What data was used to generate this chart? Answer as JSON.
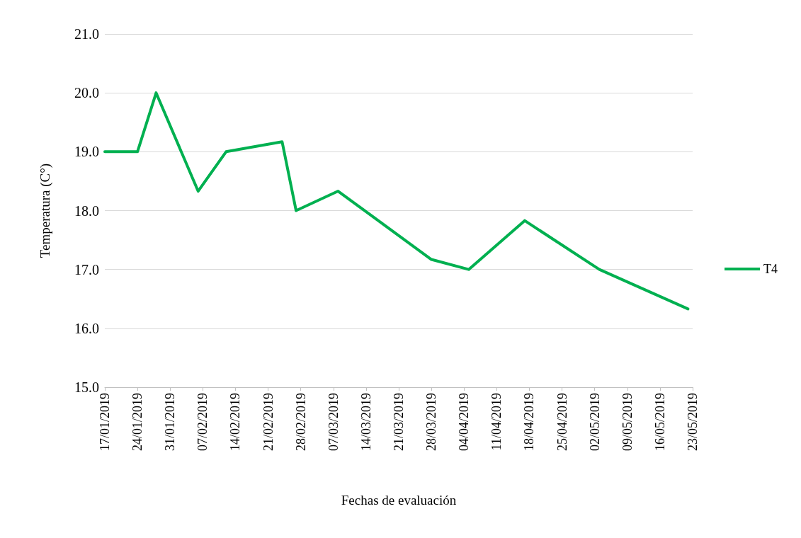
{
  "chart_data": {
    "type": "line",
    "xlabel": "Fechas de evaluación",
    "ylabel": "Temperatura (C°)",
    "x": [
      "2019-01-17",
      "2019-01-24",
      "2019-01-28",
      "2019-02-06",
      "2019-02-12",
      "2019-02-24",
      "2019-02-27",
      "2019-03-08",
      "2019-03-28",
      "2019-04-05",
      "2019-04-17",
      "2019-05-03",
      "2019-05-22"
    ],
    "series": [
      {
        "name": "T4",
        "color": "#00b050",
        "values": [
          19.0,
          19.0,
          20.0,
          18.33,
          19.0,
          19.17,
          18.0,
          18.33,
          17.17,
          17.0,
          17.83,
          17.0,
          16.33
        ]
      }
    ],
    "xlim": [
      "2019-01-17",
      "2019-05-23"
    ],
    "xticks": [
      {
        "value": "2019-01-17",
        "label": "17/01/2019"
      },
      {
        "value": "2019-01-24",
        "label": "24/01/2019"
      },
      {
        "value": "2019-01-31",
        "label": "31/01/2019"
      },
      {
        "value": "2019-02-07",
        "label": "07/02/2019"
      },
      {
        "value": "2019-02-14",
        "label": "14/02/2019"
      },
      {
        "value": "2019-02-21",
        "label": "21/02/2019"
      },
      {
        "value": "2019-02-28",
        "label": "28/02/2019"
      },
      {
        "value": "2019-03-07",
        "label": "07/03/2019"
      },
      {
        "value": "2019-03-14",
        "label": "14/03/2019"
      },
      {
        "value": "2019-03-21",
        "label": "21/03/2019"
      },
      {
        "value": "2019-03-28",
        "label": "28/03/2019"
      },
      {
        "value": "2019-04-04",
        "label": "04/04/2019"
      },
      {
        "value": "2019-04-11",
        "label": "11/04/2019"
      },
      {
        "value": "2019-04-18",
        "label": "18/04/2019"
      },
      {
        "value": "2019-04-25",
        "label": "25/04/2019"
      },
      {
        "value": "2019-05-02",
        "label": "02/05/2019"
      },
      {
        "value": "2019-05-09",
        "label": "09/05/2019"
      },
      {
        "value": "2019-05-16",
        "label": "16/05/2019"
      },
      {
        "value": "2019-05-23",
        "label": "23/05/2019"
      }
    ],
    "ylim": [
      15,
      21
    ],
    "yticks": [
      {
        "value": 15,
        "label": "15.0"
      },
      {
        "value": 16,
        "label": "16.0"
      },
      {
        "value": 17,
        "label": "17.0"
      },
      {
        "value": 18,
        "label": "18.0"
      },
      {
        "value": 19,
        "label": "19.0"
      },
      {
        "value": 20,
        "label": "20.0"
      },
      {
        "value": 21,
        "label": "21.0"
      }
    ],
    "grid": "y",
    "legend": "right",
    "marker": "none",
    "line_style": "solid"
  }
}
